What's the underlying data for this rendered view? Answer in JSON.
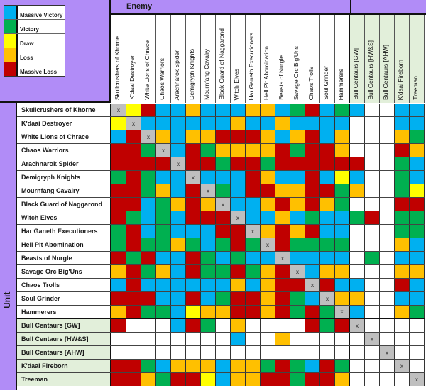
{
  "colors": {
    "massive_victory": "#00b0f0",
    "victory": "#00b050",
    "draw": "#ffff00",
    "loss": "#ffc000",
    "massive_loss": "#c00000",
    "self": "#bfbfbf",
    "header_purple": "#b18cf7",
    "alt_green": "#e2efda"
  },
  "legend": [
    {
      "code": "B",
      "label": "Massive Victory"
    },
    {
      "code": "G",
      "label": "Victory"
    },
    {
      "code": "Y",
      "label": "Draw"
    },
    {
      "code": "O",
      "label": "Loss"
    },
    {
      "code": "R",
      "label": "Massive Loss"
    }
  ],
  "header": {
    "enemy_label": "Enemy",
    "unit_label": "Unit"
  },
  "self_marker": "x",
  "columns": [
    "Skullcrushers of Khorne",
    "K'daai Destroyer",
    "White Lions of Chrace",
    "Chaos Warriors",
    "Arachnarok Spider",
    "Demigryph Knights",
    "Mournfang Cavalry",
    "Black Guard of Naggarond",
    "Witch Elves",
    "Har Ganeth Executioners",
    "Hell Pit Abomination",
    "Beasts of Nurgle",
    "Savage Orc Big'Uns",
    "Chaos Trolls",
    "Soul Grinder",
    "Hammerers",
    "Bull Centaurs [GW]",
    "Bull Centaurs [HW&S]",
    "Bull Centaurs [AHW]",
    "K'daai Fireborn",
    "Treeman"
  ],
  "rows": [
    {
      "unit": "Skullcrushers of Khorne",
      "results": [
        "X",
        "Y",
        "R",
        "B",
        "B",
        "O",
        "B",
        "B",
        "B",
        "O",
        "O",
        "B",
        "G",
        "R",
        "B",
        "G",
        "B",
        "W",
        "W",
        "B",
        "B"
      ]
    },
    {
      "unit": "K'daai Destroyer",
      "results": [
        "Y",
        "X",
        "B",
        "B",
        "B",
        "B",
        "B",
        "B",
        "O",
        "B",
        "B",
        "O",
        "B",
        "B",
        "B",
        "B",
        "W",
        "W",
        "W",
        "B",
        "B"
      ]
    },
    {
      "unit": "White Lions of Chrace",
      "results": [
        "B",
        "R",
        "X",
        "O",
        "B",
        "O",
        "O",
        "R",
        "R",
        "R",
        "O",
        "B",
        "O",
        "R",
        "B",
        "O",
        "W",
        "W",
        "W",
        "O",
        "G"
      ]
    },
    {
      "unit": "Chaos Warriors",
      "results": [
        "R",
        "R",
        "G",
        "X",
        "B",
        "R",
        "G",
        "O",
        "O",
        "O",
        "O",
        "R",
        "G",
        "R",
        "R",
        "O",
        "W",
        "W",
        "W",
        "R",
        "O"
      ]
    },
    {
      "unit": "Arachnarok Spider",
      "results": [
        "R",
        "R",
        "R",
        "R",
        "X",
        "R",
        "R",
        "G",
        "R",
        "R",
        "G",
        "R",
        "R",
        "R",
        "R",
        "R",
        "R",
        "W",
        "W",
        "G",
        "B"
      ]
    },
    {
      "unit": "Demigryph Knights",
      "results": [
        "G",
        "R",
        "G",
        "B",
        "B",
        "X",
        "B",
        "B",
        "B",
        "R",
        "O",
        "B",
        "B",
        "R",
        "B",
        "Y",
        "B",
        "W",
        "W",
        "G",
        "B"
      ]
    },
    {
      "unit": "Mournfang Cavalry",
      "results": [
        "R",
        "R",
        "G",
        "O",
        "B",
        "R",
        "X",
        "G",
        "B",
        "R",
        "R",
        "O",
        "O",
        "R",
        "R",
        "G",
        "O",
        "W",
        "W",
        "G",
        "Y"
      ]
    },
    {
      "unit": "Black Guard of Naggarond",
      "results": [
        "R",
        "R",
        "B",
        "G",
        "O",
        "R",
        "O",
        "X",
        "B",
        "B",
        "O",
        "R",
        "O",
        "R",
        "O",
        "G",
        "W",
        "W",
        "W",
        "R",
        "R"
      ]
    },
    {
      "unit": "Witch Elves",
      "results": [
        "R",
        "G",
        "B",
        "G",
        "B",
        "R",
        "R",
        "R",
        "X",
        "B",
        "B",
        "O",
        "B",
        "G",
        "B",
        "B",
        "G",
        "R",
        "W",
        "G",
        "G"
      ]
    },
    {
      "unit": "Har Ganeth Executioners",
      "results": [
        "G",
        "R",
        "B",
        "G",
        "B",
        "B",
        "B",
        "R",
        "R",
        "X",
        "O",
        "R",
        "O",
        "R",
        "B",
        "B",
        "W",
        "W",
        "W",
        "G",
        "G"
      ]
    },
    {
      "unit": "Hell Pit Abomination",
      "results": [
        "G",
        "R",
        "G",
        "G",
        "O",
        "G",
        "B",
        "G",
        "R",
        "G",
        "X",
        "R",
        "G",
        "G",
        "G",
        "G",
        "W",
        "W",
        "W",
        "O",
        "B"
      ]
    },
    {
      "unit": "Beasts of Nurgle",
      "results": [
        "R",
        "G",
        "R",
        "B",
        "B",
        "R",
        "G",
        "B",
        "G",
        "B",
        "B",
        "X",
        "B",
        "B",
        "B",
        "B",
        "W",
        "G",
        "W",
        "B",
        "B"
      ]
    },
    {
      "unit": "Savage Orc Big'Uns",
      "results": [
        "O",
        "R",
        "G",
        "O",
        "B",
        "R",
        "G",
        "G",
        "R",
        "G",
        "O",
        "R",
        "X",
        "B",
        "O",
        "O",
        "W",
        "W",
        "W",
        "O",
        "O"
      ]
    },
    {
      "unit": "Chaos Trolls",
      "results": [
        "B",
        "R",
        "B",
        "B",
        "B",
        "B",
        "B",
        "B",
        "O",
        "B",
        "O",
        "R",
        "R",
        "X",
        "R",
        "B",
        "B",
        "W",
        "W",
        "R",
        "B"
      ]
    },
    {
      "unit": "Soul Grinder",
      "results": [
        "R",
        "R",
        "R",
        "B",
        "B",
        "R",
        "B",
        "G",
        "R",
        "R",
        "O",
        "R",
        "G",
        "B",
        "X",
        "O",
        "O",
        "W",
        "W",
        "B",
        "B"
      ]
    },
    {
      "unit": "Hammerers",
      "results": [
        "O",
        "R",
        "G",
        "G",
        "B",
        "Y",
        "O",
        "O",
        "R",
        "R",
        "O",
        "R",
        "G",
        "R",
        "G",
        "X",
        "B",
        "W",
        "W",
        "O",
        "G"
      ]
    },
    {
      "unit": "Bull Centaurs [GW]",
      "results": [
        "R",
        "W",
        "W",
        "W",
        "B",
        "R",
        "G",
        "W",
        "O",
        "W",
        "W",
        "W",
        "W",
        "R",
        "G",
        "R",
        "X",
        "W",
        "W",
        "W",
        "W"
      ]
    },
    {
      "unit": "Bull Centaurs [HW&S]",
      "results": [
        "W",
        "W",
        "W",
        "W",
        "W",
        "W",
        "W",
        "W",
        "B",
        "W",
        "W",
        "O",
        "W",
        "W",
        "W",
        "W",
        "W",
        "X",
        "W",
        "W",
        "W"
      ]
    },
    {
      "unit": "Bull Centaurs [AHW]",
      "results": [
        "W",
        "W",
        "W",
        "W",
        "W",
        "W",
        "W",
        "W",
        "W",
        "W",
        "W",
        "W",
        "W",
        "W",
        "W",
        "W",
        "W",
        "W",
        "X",
        "W",
        "W"
      ]
    },
    {
      "unit": "K'daai Fireborn",
      "results": [
        "R",
        "R",
        "G",
        "B",
        "O",
        "O",
        "O",
        "B",
        "O",
        "O",
        "G",
        "R",
        "G",
        "B",
        "R",
        "G",
        "W",
        "W",
        "W",
        "X",
        "W"
      ]
    },
    {
      "unit": "Treeman",
      "results": [
        "R",
        "R",
        "O",
        "G",
        "R",
        "R",
        "Y",
        "B",
        "O",
        "O",
        "R",
        "R",
        "G",
        "R",
        "R",
        "O",
        "W",
        "W",
        "W",
        "W",
        "X"
      ]
    }
  ]
}
